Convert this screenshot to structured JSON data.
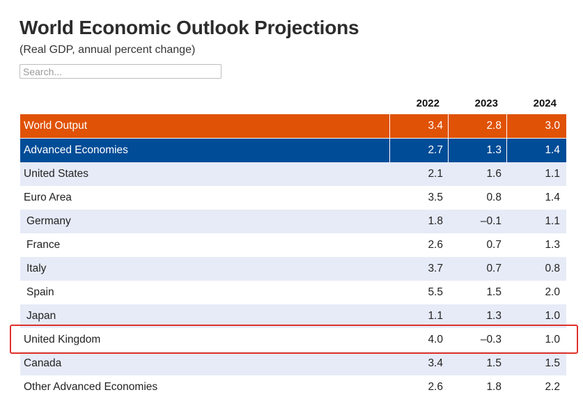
{
  "header": {
    "title": "World Economic Outlook Projections",
    "subtitle": "(Real GDP, annual percent change)"
  },
  "search": {
    "placeholder": "Search..."
  },
  "table": {
    "columns": [
      "2022",
      "2023",
      "2024"
    ],
    "rows": [
      {
        "name": "World Output",
        "values": [
          "3.4",
          "2.8",
          "3.0"
        ]
      },
      {
        "name": "Advanced Economies",
        "values": [
          "2.7",
          "1.3",
          "1.4"
        ]
      },
      {
        "name": "United States",
        "values": [
          "2.1",
          "1.6",
          "1.1"
        ]
      },
      {
        "name": "Euro Area",
        "values": [
          "3.5",
          "0.8",
          "1.4"
        ]
      },
      {
        "name": "Germany",
        "values": [
          "1.8",
          "–0.1",
          "1.1"
        ]
      },
      {
        "name": "France",
        "values": [
          "2.6",
          "0.7",
          "1.3"
        ]
      },
      {
        "name": "Italy",
        "values": [
          "3.7",
          "0.7",
          "0.8"
        ]
      },
      {
        "name": "Spain",
        "values": [
          "5.5",
          "1.5",
          "2.0"
        ]
      },
      {
        "name": "Japan",
        "values": [
          "1.1",
          "1.3",
          "1.0"
        ]
      },
      {
        "name": "United Kingdom",
        "values": [
          "4.0",
          "–0.3",
          "1.0"
        ]
      },
      {
        "name": "Canada",
        "values": [
          "3.4",
          "1.5",
          "1.5"
        ]
      },
      {
        "name": "Other Advanced Economies",
        "values": [
          "2.6",
          "1.8",
          "2.2"
        ]
      }
    ]
  },
  "colors": {
    "world_output": "#e05206",
    "advanced_economies": "#004c97",
    "stripe": "#e6ebf7",
    "highlight_border": "#e0302a"
  }
}
